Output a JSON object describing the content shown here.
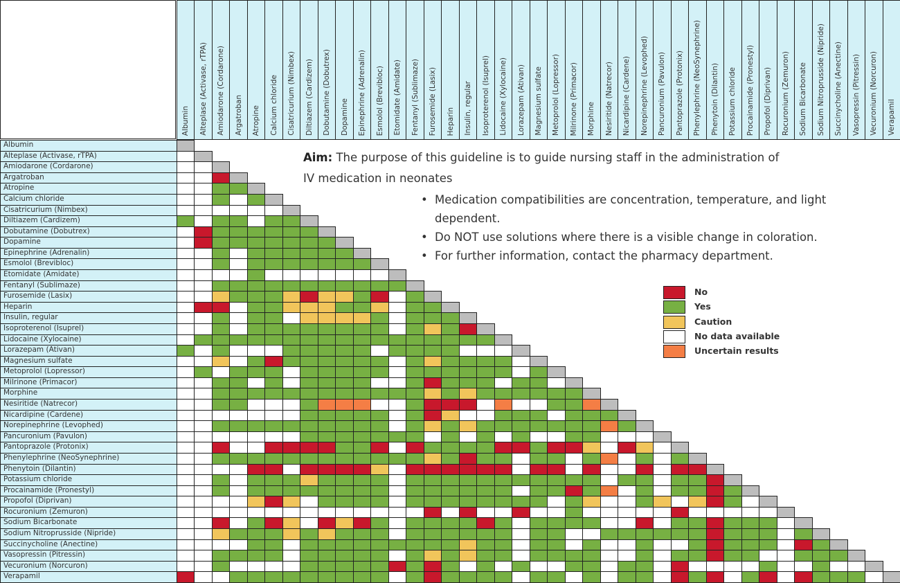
{
  "chart_data": {
    "type": "heatmap",
    "title": "",
    "drugs": [
      "Albumin",
      "Alteplase (Activase, rTPA)",
      "Amiodarone (Cordarone)",
      "Argatroban",
      "Atropine",
      "Calcium chloride",
      "Cisatricurium (Nimbex)",
      "Diltiazem (Cardizem)",
      "Dobutamine (Dobutrex)",
      "Dopamine",
      "Epinephrine (Adrenalin)",
      "Esmolol (Brevibloc)",
      "Etomidate (Amidate)",
      "Fentanyl (Sublimaze)",
      "Furosemide (Lasix)",
      "Heparin",
      "Insulin, regular",
      "Isoproterenol (Isuprel)",
      "Lidocaine (Xylocaine)",
      "Lorazepam (Ativan)",
      "Magnesium sulfate",
      "Metoprolol (Lopressor)",
      "Milrinone (Primacor)",
      "Morphine",
      "Nesiritide (Natrecor)",
      "Nicardipine (Cardene)",
      "Norepinephrine (Levophed)",
      "Pancuronium (Pavulon)",
      "Pantoprazole (Protonix)",
      "Phenylephrine (NeoSynephrine)",
      "Phenytoin (Dilantin)",
      "Potassium chloride",
      "Procainamide (Pronestyl)",
      "Propofol (Diprivan)",
      "Rocuronium (Zemuron)",
      "Sodium Bicarbonate",
      "Sodium Nitroprusside (Nipride)",
      "Succinycholine (Anectine)",
      "Vasopressin (Pitressin)",
      "Vecuronium (Norcuron)",
      "Verapamil"
    ],
    "codes": {
      "R": "No",
      "G": "Yes",
      "Y": "Caution",
      "W": "No data available",
      "O": "Uncertain results"
    },
    "matrix": [
      "",
      "W",
      "WW",
      "WWR",
      "WWGG",
      "WWGWG",
      "WWWWWW",
      "GWGGWGG",
      "WRGGGGGG",
      "WRGGGGGGG",
      "WWGWGGGGGG",
      "WWGWGGGGGGG",
      "WWWWGWWWWWWW",
      "WWGGGGGGGGGGG",
      "WWYGGGYRYYGRWG",
      "WRRWGGYYYGGYWGG",
      "WWGWGGWYYYYGWGGG",
      "WWGWGGGGGGGGWGYGR",
      "WGGGGGGGGGGGGGGGGG",
      "GWGWWWGGGGGWGGGGWWW",
      "WWYWGRGGGGGGWGYGGGGW",
      "WGWGGGWGGGGGWGGGGGGWG",
      "WWGGWGWGGGGWWGRGGGWGGW",
      "WWGGGGGGGGGGGGYGYGGGGGG",
      "WWGGWWWGOOOWWGRRRWOWWGGO",
      "WWWWWWWGGGGGWGRYWWGGGWGGG",
      "WWGGGGGGGGGGWGYGYGGGGGGGOG",
      "WWWWWWWGGGGGGGWGWGWGWWGGWWW",
      "WWRWWRRRRGGRWRGGGGRRGRRYWRYW",
      "WWGGGGGGGGGGGGYGRGGWGGWGOWGWG",
      "WWWWRRWRRRRYWRRRRRRWRRWRWWRWRR",
      "WWGWGGGYGGGGWGGGGGGGGGGGWGGWGGR",
      "WWGWGGGGGGGGWGGGGGGWGGRGOWGWGGRG",
      "WWWWYRYWGGGGWGGGGGGGGWGYWWGYWYRGW",
      "WWWWWWWWWWWWWWRWRWWRWWGWWWWWRWWWWW",
      "WWRWGRYWRYRGWGGGGRGWGGGGWWRWGGRGGGW",
      "WWYGGGYGYGGGWGGGGGGWGGWWGGGGGGRGGGWG",
      "WWWWGGWGGGGGGGGGYGGWGGWGWWGWWGRGGGWRG",
      "WWGGGGWGGGGGWGYGYGGWGGGGWWGWGGRGGWWGGG",
      "WWGWWWWGGGGGRGRGWGWGWWGGWGGWRWWWWGWWGWW",
      "RWWGGGGGGGGGWGRGGGGWGGWGWGGWRGRWGRWRGGGW"
    ]
  },
  "colors": {
    "R": "#c8182c",
    "G": "#77b043",
    "Y": "#f1c55b",
    "W": "#ffffff",
    "O": "#f47e45",
    "diagonal": "#bdbdbd",
    "header_bg": "#d3f1f7"
  },
  "info": {
    "aim_label": "Aim:",
    "aim_text": " The purpose of this guideline is to guide nursing staff in the administration of IV medication in neonates",
    "bullets": [
      "Medication compatibilities are concentration, temperature, and light dependent.",
      "Do NOT use solutions where there is a visible change in coloration.",
      "For further information, contact the pharmacy department."
    ]
  },
  "legend": [
    {
      "code": "R",
      "label": "No"
    },
    {
      "code": "G",
      "label": "Yes"
    },
    {
      "code": "Y",
      "label": "Caution"
    },
    {
      "code": "W",
      "label": "No data available"
    },
    {
      "code": "O",
      "label": "Uncertain results"
    }
  ]
}
